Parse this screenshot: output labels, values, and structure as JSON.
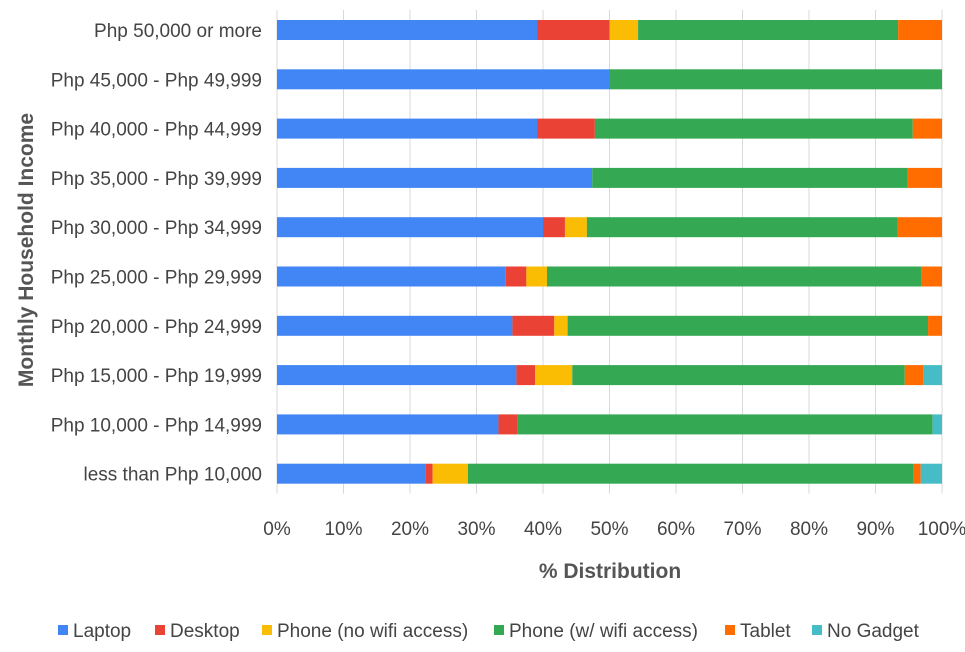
{
  "chart_data": {
    "type": "bar",
    "orientation": "horizontal",
    "stacked": true,
    "title": "",
    "xlabel": "% Distribution",
    "ylabel": "Monthly Household Income",
    "xlim": [
      0,
      100
    ],
    "x_ticks": [
      "0%",
      "10%",
      "20%",
      "30%",
      "40%",
      "50%",
      "60%",
      "70%",
      "80%",
      "90%",
      "100%"
    ],
    "grid": "vertical",
    "legend_position": "bottom",
    "categories": [
      "Php 50,000 or more",
      "Php 45,000 - Php 49,999",
      "Php 40,000 - Php 44,999",
      "Php 35,000 - Php 39,999",
      "Php 30,000 - Php 34,999",
      "Php 25,000 - Php 29,999",
      "Php 20,000 - Php 24,999",
      "Php 15,000 - Php 19,999",
      "Php 10,000 - Php 14,999",
      "less than Php 10,000"
    ],
    "series": [
      {
        "name": "Laptop",
        "color": "#4285F4",
        "values": [
          39.1,
          50.0,
          39.1,
          47.4,
          40.0,
          34.4,
          35.4,
          36.0,
          33.3,
          22.3
        ]
      },
      {
        "name": "Desktop",
        "color": "#EA4335",
        "values": [
          10.9,
          0.0,
          8.7,
          0.0,
          3.3,
          3.1,
          6.3,
          2.8,
          2.8,
          1.1
        ]
      },
      {
        "name": "Phone (no wifi access)",
        "color": "#FBBC04",
        "values": [
          4.3,
          0.0,
          0.0,
          0.0,
          3.3,
          3.1,
          2.0,
          5.6,
          0.0,
          5.3
        ]
      },
      {
        "name": "Phone (w/ wifi access)",
        "color": "#34A853",
        "values": [
          39.1,
          50.0,
          47.8,
          47.4,
          46.7,
          56.3,
          54.2,
          50.0,
          62.5,
          67.0
        ]
      },
      {
        "name": "Tablet",
        "color": "#FF6D01",
        "values": [
          6.6,
          0.0,
          4.4,
          5.2,
          6.7,
          3.1,
          2.1,
          2.8,
          0.0,
          1.1
        ]
      },
      {
        "name": "No Gadget",
        "color": "#46BDC6",
        "values": [
          0.0,
          0.0,
          0.0,
          0.0,
          0.0,
          0.0,
          0.0,
          2.8,
          1.4,
          3.2
        ]
      }
    ]
  }
}
